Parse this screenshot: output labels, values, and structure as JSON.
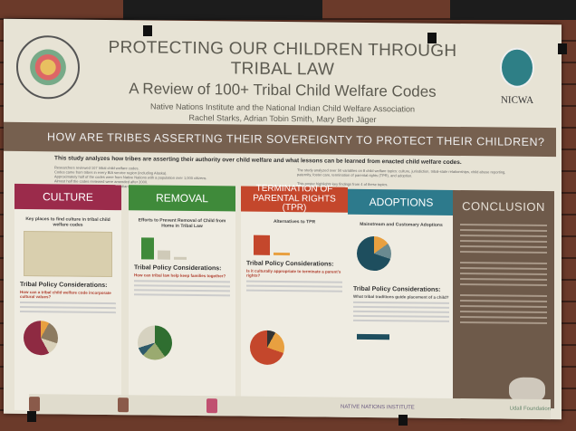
{
  "poster": {
    "title": "PROTECTING OUR CHILDREN THROUGH TRIBAL LAW",
    "subtitle": "A Review of 100+ Tribal Child Welfare Codes",
    "organizations": "Native Nations Institute and the National Indian Child Welfare Association",
    "authors": "Rachel Starks, Adrian Tobin Smith, Mary Beth Jäger",
    "nicwa_logo": "NICWA",
    "banner": "HOW ARE TRIBES ASSERTING THEIR SOVEREIGNTY TO PROTECT THEIR CHILDREN?",
    "intro_heading": "This study analyzes how tribes are asserting their authority over child welfare and what lessons can be learned from enacted child welfare codes.",
    "intro_bullets": [
      "Researchers reviewed 107 tribal child welfare codes.",
      "Codes came from tribes in every BIA service region (including Alaska).",
      "Approximately half of the codes were from Native Nations with a population over 1,000 citizens.",
      "Almost half the codes reviewed were amended after 2000.",
      "Codes were retrieved from the National Indian Law Library collection and other on-line sources."
    ],
    "intro_right": "The study analyzed over 50 variables on 8 child welfare topics: culture, jurisdiction, tribal-state relationships, child abuse reporting, paternity, foster care, termination of parental rights (TPR), and adoption.",
    "intro_right2": "This poster highlights key findings from 4 of these topics.",
    "columns": [
      {
        "title": "CULTURE",
        "color": "#9b2b4b",
        "chart_title": "Key places to find culture in tribal child welfare codes",
        "considerations": "Tribal Policy Considerations:",
        "question": "How can a tribal child welfare code incorporate cultural values?"
      },
      {
        "title": "REMOVAL",
        "color": "#3f8a3a",
        "chart_title": "Efforts to Prevent Removal of Child from Home in Tribal Law",
        "considerations": "Tribal Policy Considerations:",
        "question": "How can tribal law help keep families together?"
      },
      {
        "title": "TERMINATION OF PARENTAL RIGHTS (TPR)",
        "color": "#c4472c",
        "chart_title": "Alternatives to TPR",
        "considerations": "Tribal Policy Considerations:",
        "question": "Is it culturally appropriate to terminate a parent's rights?"
      },
      {
        "title": "ADOPTIONS",
        "color": "#2d7a8c",
        "chart_title": "Mainstream and Customary Adoptions",
        "considerations": "Tribal Policy Considerations:",
        "question": "What tribal traditions guide placement of a child?"
      }
    ],
    "conclusion": "CONCLUSION",
    "footer_org": "NATIVE NATIONS INSTITUTE",
    "footer_sponsor": "Udall Foundation"
  }
}
